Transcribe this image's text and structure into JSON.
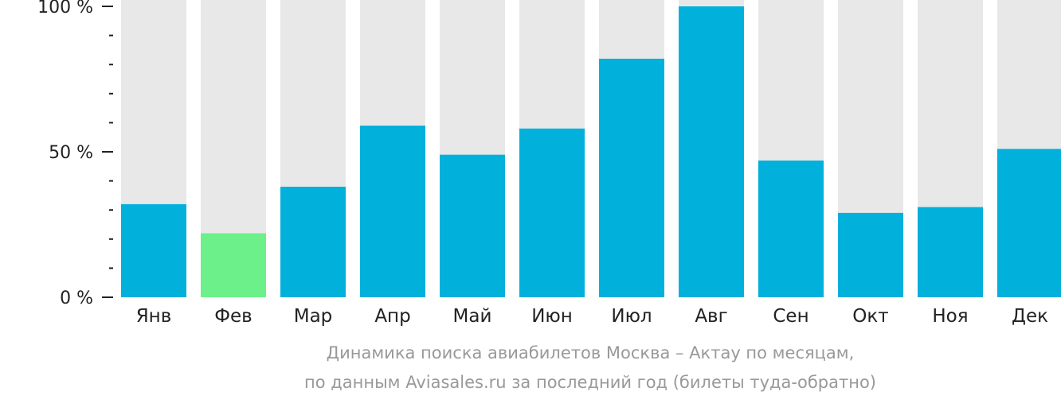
{
  "chart_data": {
    "type": "bar",
    "categories": [
      "Янв",
      "Фев",
      "Мар",
      "Апр",
      "Май",
      "Июн",
      "Июл",
      "Авг",
      "Сен",
      "Окт",
      "Ноя",
      "Дек"
    ],
    "values": [
      32,
      22,
      38,
      59,
      49,
      58,
      82,
      100,
      47,
      29,
      31,
      51
    ],
    "max_value": 100,
    "ylim": [
      0,
      100
    ],
    "ytick_labels": [
      "0 %",
      "50 %",
      "100 %"
    ],
    "ytick_values": [
      0,
      50,
      100
    ],
    "minor_tick_step": 10,
    "grid": false,
    "colors": {
      "bar": "#02b0dc",
      "bar_highlight": "#6cf18a",
      "bar_background": "#e8e8e8"
    },
    "highlight_category": "Фев",
    "caption_line1": "Динамика поиска авиабилетов Москва – Актау по месяцам,",
    "caption_line2": "по данным Aviasales.ru за последний год (билеты туда-обратно)"
  }
}
